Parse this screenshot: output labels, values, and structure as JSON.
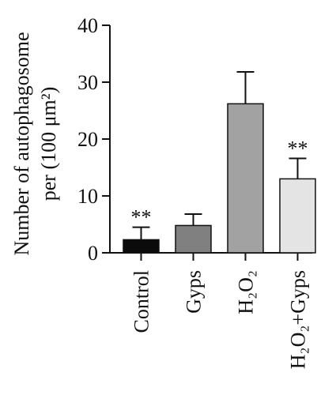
{
  "chart_data": {
    "type": "bar",
    "ylabel_line1": "Number of autophagosome",
    "ylabel_line2": "per (100 μm²)",
    "ylim": [
      0,
      40
    ],
    "yticks": [
      0,
      10,
      20,
      30,
      40
    ],
    "grid": false,
    "categories": [
      {
        "label": "Control",
        "value": 2.3,
        "error": 2.2,
        "annotation": "**",
        "color": "#0b0b0b"
      },
      {
        "label": "Gyps",
        "value": 4.8,
        "error": 2.0,
        "annotation": "",
        "color": "#808080"
      },
      {
        "label": "H₂O₂",
        "value": 26.2,
        "error": 5.6,
        "annotation": "",
        "color": "#a2a2a2"
      },
      {
        "label": "H₂O₂+Gyps",
        "value": 13.0,
        "error": 3.6,
        "annotation": "**",
        "color": "#e4e4e4"
      }
    ]
  }
}
